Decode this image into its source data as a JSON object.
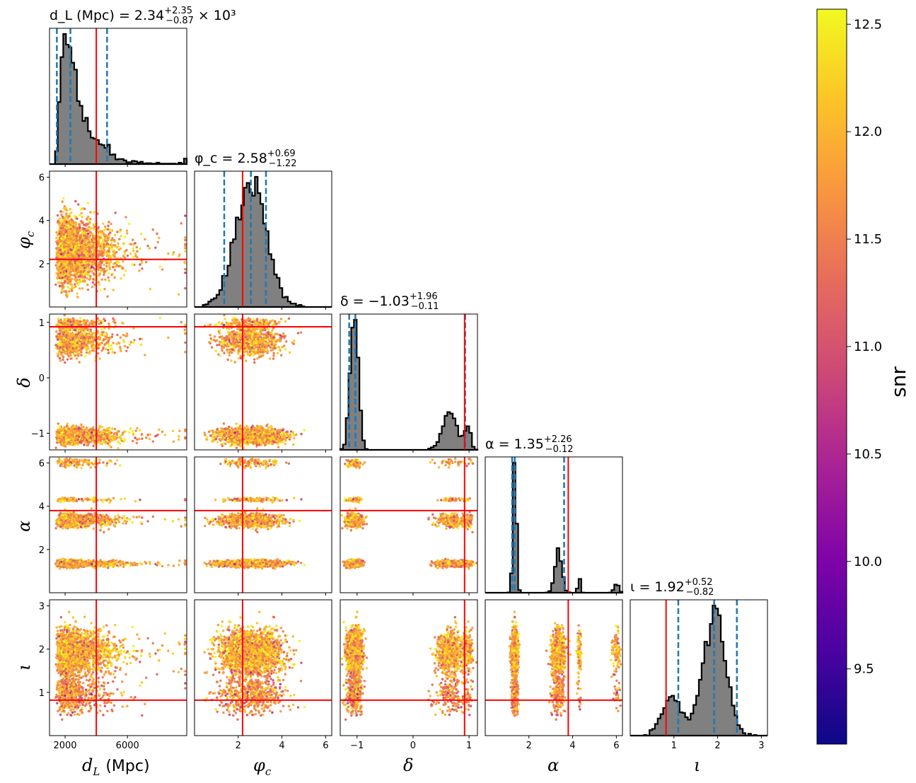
{
  "chart_data": {
    "type": "corner",
    "parameters": [
      {
        "key": "dL",
        "label": "d_L (Mpc)",
        "range": [
          1000,
          9800
        ],
        "ticks": [
          2000,
          6000
        ],
        "title": {
          "prefix": "d_L (Mpc) = 2.34",
          "plus": "+2.35",
          "minus": "−0.87",
          "suffix": "× 10³"
        },
        "median": 2340,
        "quantiles": [
          1470,
          2340,
          4690
        ],
        "truth": 4000
      },
      {
        "key": "phic",
        "label": "φ_c",
        "range": [
          0,
          6.28
        ],
        "ticks": [
          2,
          4,
          6
        ],
        "title": {
          "prefix": "φ_c = 2.58",
          "plus": "+0.69",
          "minus": "−1.22",
          "suffix": ""
        },
        "median": 2.58,
        "quantiles": [
          1.36,
          2.58,
          3.27
        ],
        "truth": 2.2
      },
      {
        "key": "delta",
        "label": "δ",
        "range": [
          -1.3,
          1.15
        ],
        "ticks": [
          -1,
          0,
          1
        ],
        "title": {
          "prefix": "δ = −1.03",
          "plus": "+1.96",
          "minus": "−0.11",
          "suffix": ""
        },
        "median": -1.03,
        "quantiles": [
          -1.14,
          -1.03,
          0.93
        ],
        "truth": 0.92
      },
      {
        "key": "alpha",
        "label": "α",
        "range": [
          0,
          6.28
        ],
        "ticks": [
          2,
          4,
          6
        ],
        "title": {
          "prefix": "α = 1.35",
          "plus": "+2.26",
          "minus": "−0.12",
          "suffix": ""
        },
        "median": 1.35,
        "quantiles": [
          1.23,
          1.35,
          3.61
        ],
        "truth": 3.8
      },
      {
        "key": "iota",
        "label": "ι",
        "range": [
          0,
          3.14
        ],
        "ticks": [
          1,
          2,
          3
        ],
        "title": {
          "prefix": "ι = 1.92",
          "plus": "+0.52",
          "minus": "−0.82",
          "suffix": ""
        },
        "median": 1.92,
        "quantiles": [
          1.1,
          1.92,
          2.44
        ],
        "truth": 0.82
      }
    ],
    "colorbar": {
      "label": "snr",
      "colormap": "plasma",
      "range": [
        9.15,
        12.57
      ],
      "ticks": [
        9.5,
        10.0,
        10.5,
        11.0,
        11.5,
        12.0,
        12.5
      ]
    },
    "colors": {
      "hist_fill": "#808080",
      "hist_edge": "#000000",
      "quantile": "#1f77b4",
      "truth": "#ff0000"
    }
  },
  "labels": {
    "x_dL": "d",
    "x_dL_sub": "L",
    "x_dL_unit": "(Mpc)",
    "x_phic": "φ",
    "x_phic_sub": "c",
    "x_delta": "δ",
    "x_alpha": "α",
    "x_iota": "ι",
    "y_phic": "φ",
    "y_phic_sub": "c",
    "y_delta": "δ",
    "y_alpha": "α",
    "y_iota": "ι"
  }
}
